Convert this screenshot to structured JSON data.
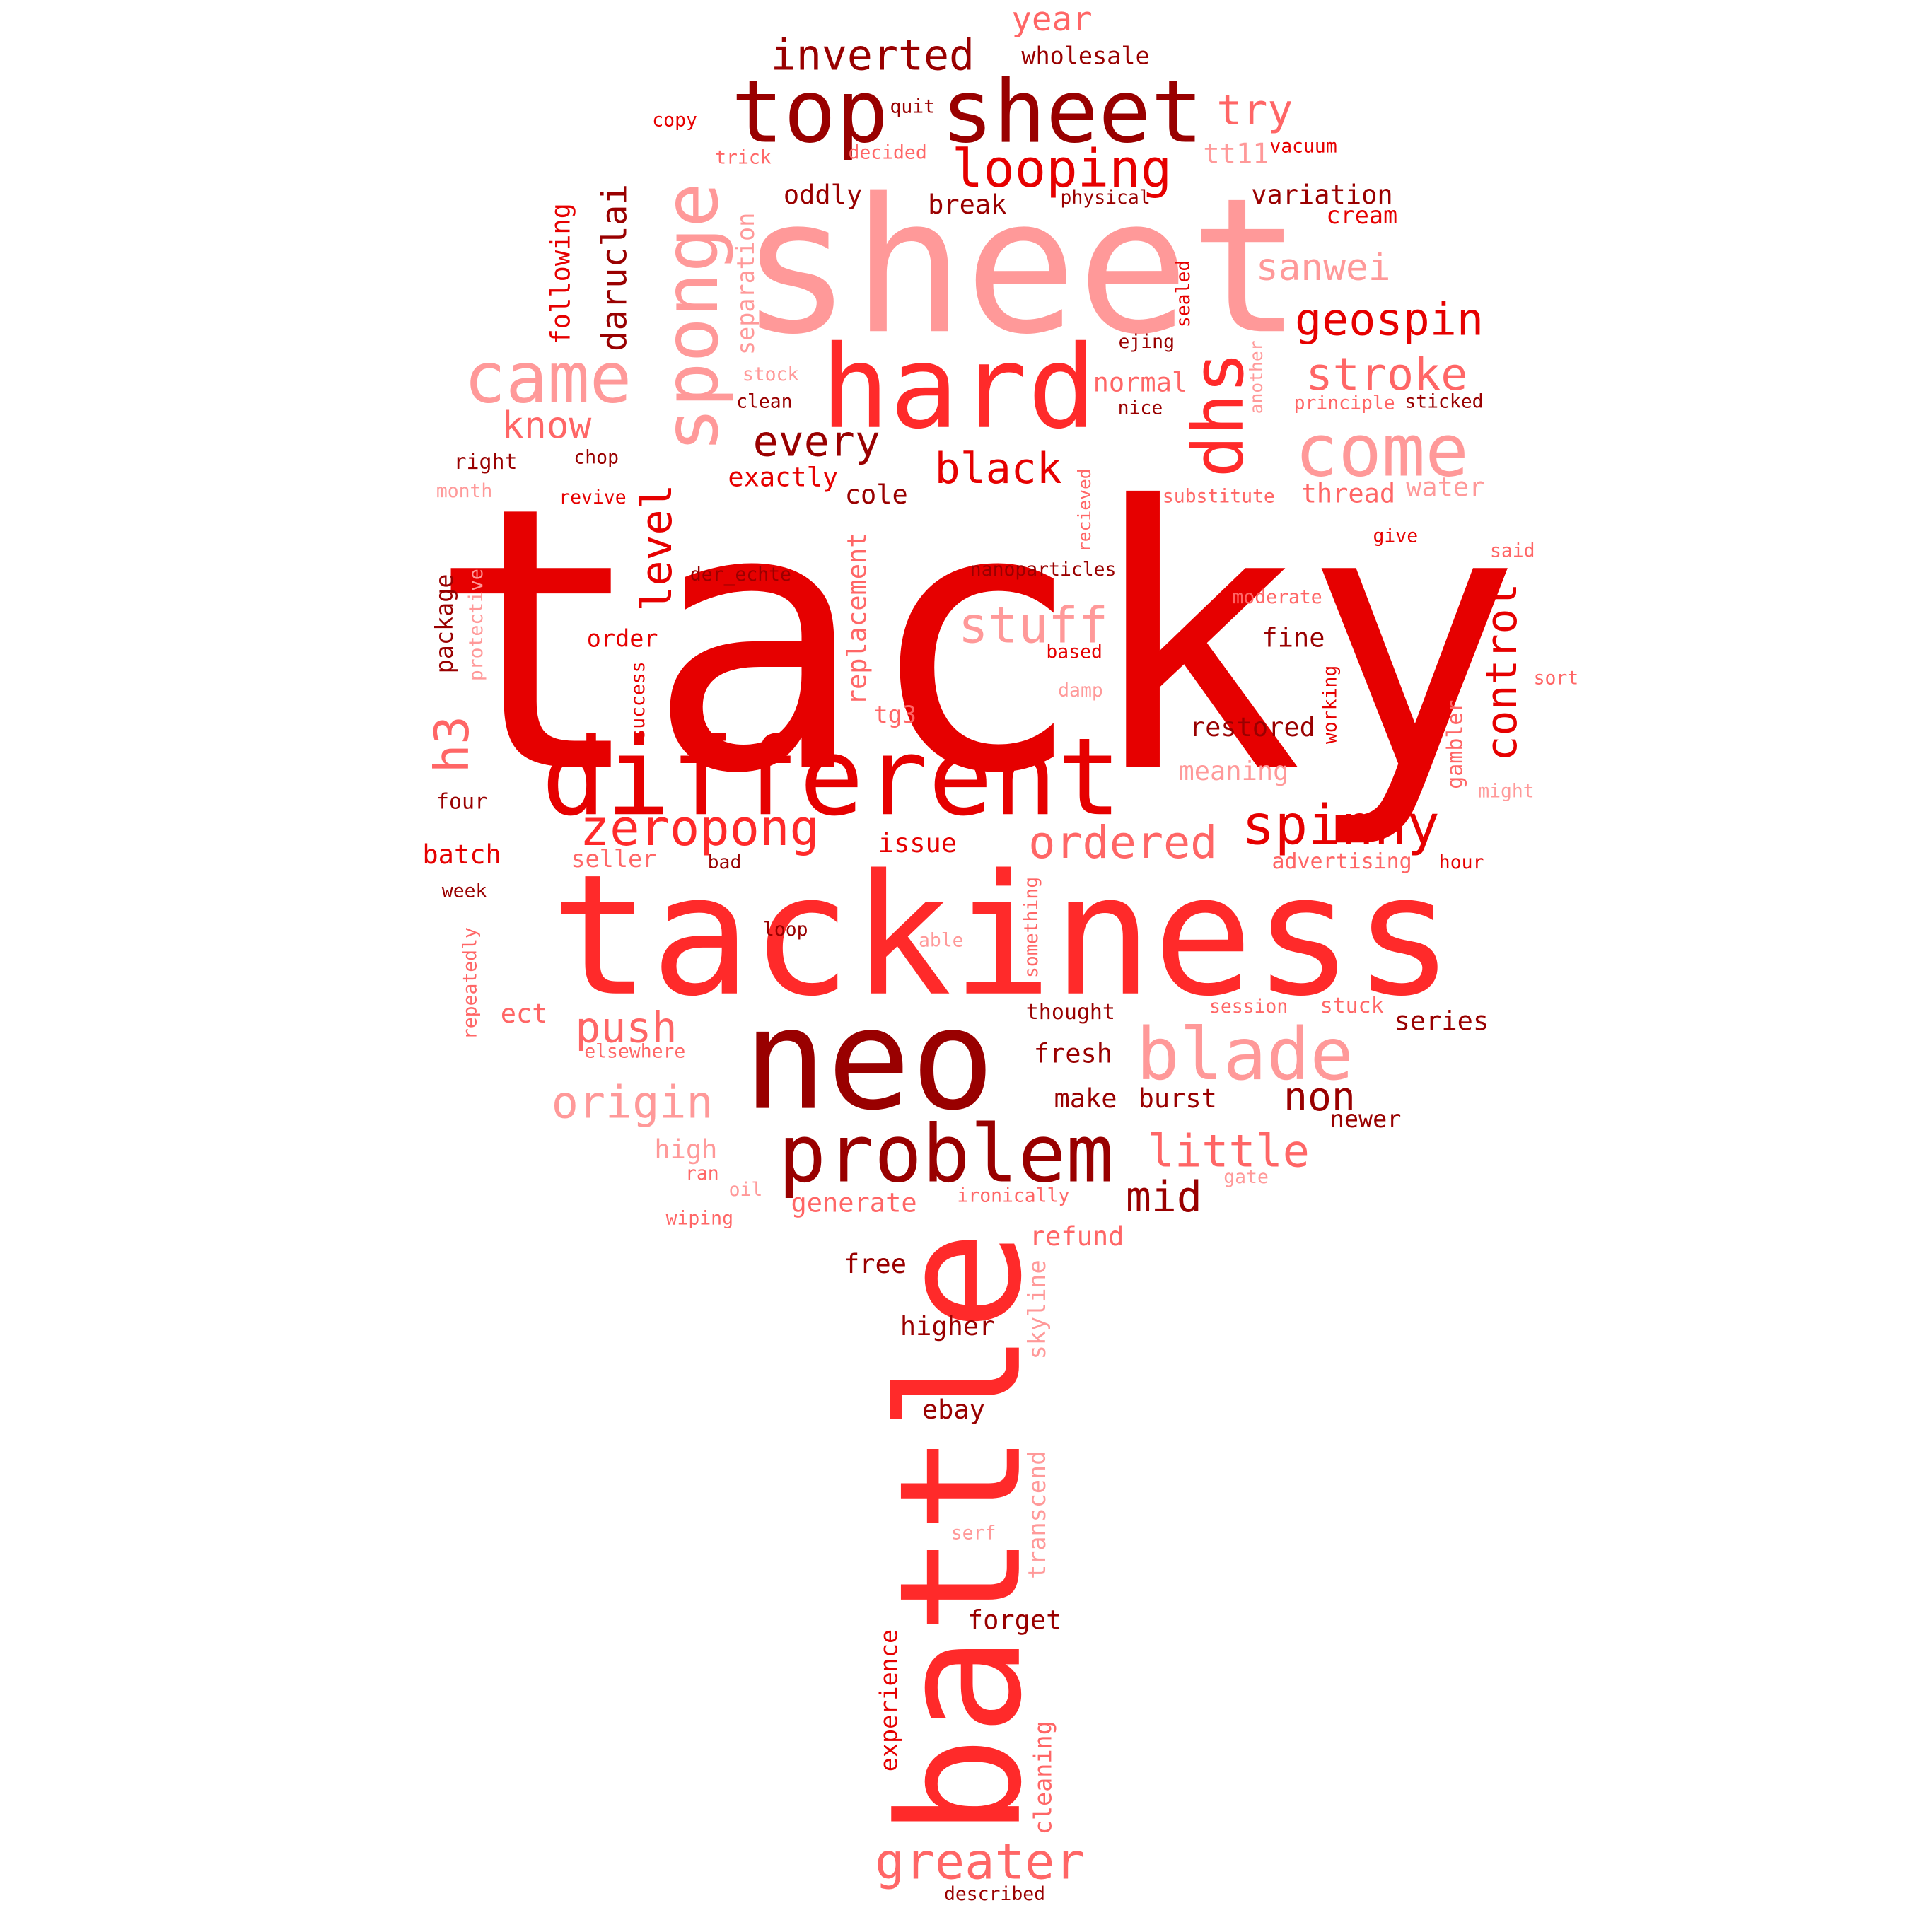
{
  "palette": {
    "dark": "#990000",
    "red": "#e60000",
    "bright": "#ff2a2a",
    "pink": "#ff9999",
    "soft": "#ff6666"
  },
  "words": [
    {
      "text": "tacky",
      "color": "#e60000"
    },
    {
      "text": "sheet",
      "color": "#ff9999"
    },
    {
      "text": "tackiness",
      "color": "#ff2a2a"
    },
    {
      "text": "battle",
      "color": "#ff2a2a"
    },
    {
      "text": "neo",
      "color": "#990000"
    },
    {
      "text": "hard",
      "color": "#ff2a2a"
    },
    {
      "text": "different",
      "color": "#e60000"
    },
    {
      "text": "top sheet",
      "color": "#990000"
    },
    {
      "text": "problem",
      "color": "#990000"
    },
    {
      "text": "sponge",
      "color": "#ff9999"
    },
    {
      "text": "came",
      "color": "#ff9999"
    },
    {
      "text": "come",
      "color": "#ff9999"
    },
    {
      "text": "blade",
      "color": "#ff9999"
    },
    {
      "text": "dhs",
      "color": "#ff2a2a"
    },
    {
      "text": "spinny",
      "color": "#e60000"
    },
    {
      "text": "looping",
      "color": "#e60000"
    },
    {
      "text": "zeropong",
      "color": "#ff2a2a"
    },
    {
      "text": "greater",
      "color": "#ff6666"
    },
    {
      "text": "stuff",
      "color": "#ff9999"
    },
    {
      "text": "geospin",
      "color": "#e60000"
    },
    {
      "text": "stroke",
      "color": "#ff6666"
    },
    {
      "text": "ordered",
      "color": "#ff6666"
    },
    {
      "text": "origin",
      "color": "#ff9999"
    },
    {
      "text": "little",
      "color": "#ff6666"
    },
    {
      "text": "inverted",
      "color": "#990000"
    },
    {
      "text": "black",
      "color": "#e60000"
    },
    {
      "text": "control",
      "color": "#e60000"
    },
    {
      "text": "every",
      "color": "#990000"
    },
    {
      "text": "push",
      "color": "#ff6666"
    },
    {
      "text": "non",
      "color": "#990000"
    },
    {
      "text": "try",
      "color": "#ff6666"
    },
    {
      "text": "h3",
      "color": "#ff6666"
    },
    {
      "text": "mid",
      "color": "#990000"
    },
    {
      "text": "level",
      "color": "#e60000"
    },
    {
      "text": "daruclai",
      "color": "#990000"
    },
    {
      "text": "know",
      "color": "#ff6666"
    },
    {
      "text": "sanwei",
      "color": "#ff9999"
    },
    {
      "text": "year",
      "color": "#ff6666"
    },
    {
      "text": "wholesale",
      "color": "#990000"
    },
    {
      "text": "copy",
      "color": "#e60000"
    },
    {
      "text": "quit",
      "color": "#990000"
    },
    {
      "text": "trick",
      "color": "#ff6666"
    },
    {
      "text": "decided",
      "color": "#ff6666"
    },
    {
      "text": "vacuum",
      "color": "#e60000"
    },
    {
      "text": "tt11",
      "color": "#ff9999"
    },
    {
      "text": "physical",
      "color": "#990000"
    },
    {
      "text": "oddly",
      "color": "#990000"
    },
    {
      "text": "break",
      "color": "#990000"
    },
    {
      "text": "variation",
      "color": "#990000"
    },
    {
      "text": "cream",
      "color": "#e60000"
    },
    {
      "text": "following",
      "color": "#e60000"
    },
    {
      "text": "separation",
      "color": "#ff9999"
    },
    {
      "text": "sealed",
      "color": "#e60000"
    },
    {
      "text": "ejing",
      "color": "#990000"
    },
    {
      "text": "stock",
      "color": "#ff9999"
    },
    {
      "text": "clean",
      "color": "#990000"
    },
    {
      "text": "normal",
      "color": "#ff6666"
    },
    {
      "text": "nice",
      "color": "#990000"
    },
    {
      "text": "another",
      "color": "#ff9999"
    },
    {
      "text": "principle",
      "color": "#ff6666"
    },
    {
      "text": "sticked",
      "color": "#990000"
    },
    {
      "text": "right",
      "color": "#990000"
    },
    {
      "text": "chop",
      "color": "#990000"
    },
    {
      "text": "exactly",
      "color": "#e60000"
    },
    {
      "text": "month",
      "color": "#ff9999"
    },
    {
      "text": "revive",
      "color": "#e60000"
    },
    {
      "text": "cole",
      "color": "#990000"
    },
    {
      "text": "substitute",
      "color": "#ff6666"
    },
    {
      "text": "thread",
      "color": "#ff6666"
    },
    {
      "text": "water",
      "color": "#ff9999"
    },
    {
      "text": "recieved",
      "color": "#ff6666"
    },
    {
      "text": "give",
      "color": "#e60000"
    },
    {
      "text": "replacement",
      "color": "#ff6666"
    },
    {
      "text": "nanoparticles",
      "color": "#990000"
    },
    {
      "text": "der_echte",
      "color": "#990000"
    },
    {
      "text": "said",
      "color": "#ff6666"
    },
    {
      "text": "package",
      "color": "#990000"
    },
    {
      "text": "protective",
      "color": "#ff9999"
    },
    {
      "text": "moderate",
      "color": "#ff6666"
    },
    {
      "text": "order",
      "color": "#e60000"
    },
    {
      "text": "fine",
      "color": "#990000"
    },
    {
      "text": "based",
      "color": "#e60000"
    },
    {
      "text": "success",
      "color": "#e60000"
    },
    {
      "text": "damp",
      "color": "#ff9999"
    },
    {
      "text": "sort",
      "color": "#ff6666"
    },
    {
      "text": "tg3",
      "color": "#ff6666"
    },
    {
      "text": "working",
      "color": "#e60000"
    },
    {
      "text": "restored",
      "color": "#990000"
    },
    {
      "text": "gambler",
      "color": "#ff6666"
    },
    {
      "text": "meaning",
      "color": "#ff9999"
    },
    {
      "text": "might",
      "color": "#ff9999"
    },
    {
      "text": "four",
      "color": "#990000"
    },
    {
      "text": "batch",
      "color": "#e60000"
    },
    {
      "text": "issue",
      "color": "#e60000"
    },
    {
      "text": "seller",
      "color": "#ff6666"
    },
    {
      "text": "bad",
      "color": "#990000"
    },
    {
      "text": "advertising",
      "color": "#ff6666"
    },
    {
      "text": "hour",
      "color": "#e60000"
    },
    {
      "text": "week",
      "color": "#990000"
    },
    {
      "text": "loop",
      "color": "#990000"
    },
    {
      "text": "able",
      "color": "#ff9999"
    },
    {
      "text": "something",
      "color": "#ff6666"
    },
    {
      "text": "repeatedly",
      "color": "#ff6666"
    },
    {
      "text": "ect",
      "color": "#ff6666"
    },
    {
      "text": "thought",
      "color": "#990000"
    },
    {
      "text": "session",
      "color": "#ff6666"
    },
    {
      "text": "stuck",
      "color": "#ff6666"
    },
    {
      "text": "series",
      "color": "#990000"
    },
    {
      "text": "elsewhere",
      "color": "#ff6666"
    },
    {
      "text": "fresh",
      "color": "#990000"
    },
    {
      "text": "make",
      "color": "#990000"
    },
    {
      "text": "burst",
      "color": "#990000"
    },
    {
      "text": "newer",
      "color": "#990000"
    },
    {
      "text": "high",
      "color": "#ff9999"
    },
    {
      "text": "ran",
      "color": "#ff6666"
    },
    {
      "text": "oil",
      "color": "#ff9999"
    },
    {
      "text": "generate",
      "color": "#ff6666"
    },
    {
      "text": "ironically",
      "color": "#ff6666"
    },
    {
      "text": "gate",
      "color": "#ff9999"
    },
    {
      "text": "wiping",
      "color": "#ff6666"
    },
    {
      "text": "refund",
      "color": "#ff6666"
    },
    {
      "text": "free",
      "color": "#990000"
    },
    {
      "text": "skyline",
      "color": "#ff9999"
    },
    {
      "text": "higher",
      "color": "#990000"
    },
    {
      "text": "ebay",
      "color": "#990000"
    },
    {
      "text": "transcend",
      "color": "#ff9999"
    },
    {
      "text": "serf",
      "color": "#ff9999"
    },
    {
      "text": "forget",
      "color": "#990000"
    },
    {
      "text": "experience",
      "color": "#e60000"
    },
    {
      "text": "cleaning",
      "color": "#ff6666"
    },
    {
      "text": "described",
      "color": "#990000"
    }
  ]
}
